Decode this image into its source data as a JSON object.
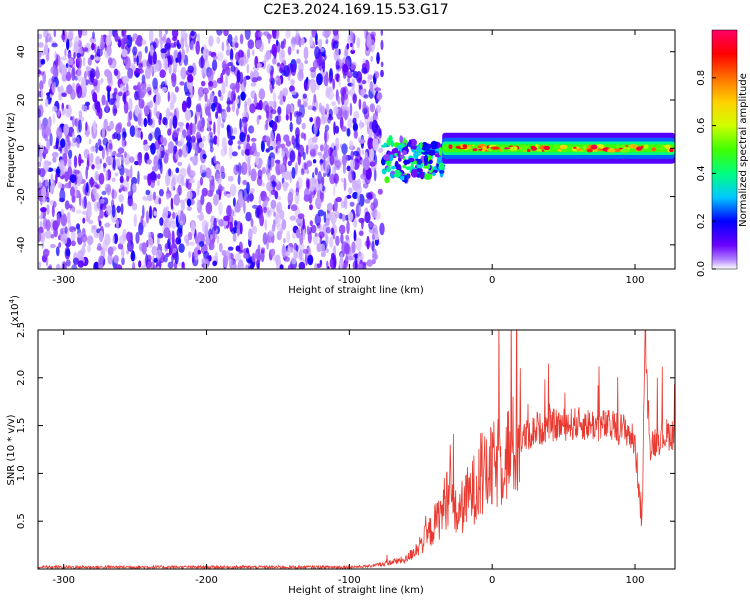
{
  "title": "C2E3.2024.169.15.53.G17",
  "chart_data": [
    {
      "type": "heatmap",
      "xlabel": "Height of straight line (km)",
      "ylabel": "Frequency (Hz)",
      "xlim": [
        -318,
        128
      ],
      "ylim": [
        -50,
        49
      ],
      "xticks": [
        -300,
        -200,
        -100,
        0,
        100
      ],
      "yticks": [
        -40,
        -20,
        0,
        20,
        40
      ],
      "colorbar": {
        "label": "Normalized spectral amplitude",
        "range": [
          0,
          1
        ],
        "ticks": [
          "0.0",
          "0.2",
          "0.4",
          "0.6",
          "0.8"
        ],
        "colors": [
          "#ffffff",
          "#b080ff",
          "#6a00ff",
          "#0000ff",
          "#00c8ff",
          "#00ff80",
          "#40ff00",
          "#d0ff00",
          "#ffd000",
          "#ff7000",
          "#ff0000",
          "#ff0066"
        ]
      },
      "regions": [
        {
          "x": [
            -318,
            -77
          ],
          "description_values": "broadband noise, amplitude 0.1-0.4, all frequencies"
        },
        {
          "x": [
            -77,
            -35
          ],
          "center_freq": -5,
          "peak_amplitude": 0.45
        },
        {
          "x": [
            -35,
            128
          ],
          "center_freq": 0,
          "peak_amplitude": 1.0,
          "bandwidth_hz": 4
        }
      ]
    },
    {
      "type": "line",
      "xlabel": "Height of straight line (km)",
      "ylabel": "SNR (10 * v/v)",
      "yscale_label": "(x10",
      "yscale_exp": "4",
      "yscale_close": ")",
      "xlim": [
        -318,
        128
      ],
      "ylim": [
        0,
        2.5
      ],
      "xticks": [
        -300,
        -200,
        -100,
        0,
        100
      ],
      "yticks": [
        "0.5",
        "1.0",
        "1.5",
        "2.0",
        "2.5"
      ],
      "ytick_values": [
        0.5,
        1.0,
        1.5,
        2.0,
        2.5
      ],
      "color": "#e83a30",
      "series": [
        {
          "x": [
            -318,
            -300,
            -250,
            -200,
            -150,
            -100,
            -85,
            -60,
            -45,
            -35,
            -30,
            -25,
            -15,
            0,
            10,
            20,
            30,
            40,
            60,
            80,
            95,
            100,
            105,
            107,
            110,
            120,
            128
          ],
          "values": [
            0.02,
            0.02,
            0.02,
            0.02,
            0.02,
            0.02,
            0.03,
            0.1,
            0.35,
            0.6,
            0.85,
            0.55,
            0.8,
            1.05,
            1.2,
            1.35,
            1.45,
            1.5,
            1.52,
            1.5,
            1.45,
            1.3,
            0.5,
            2.5,
            1.3,
            1.4,
            1.42
          ]
        }
      ]
    }
  ]
}
